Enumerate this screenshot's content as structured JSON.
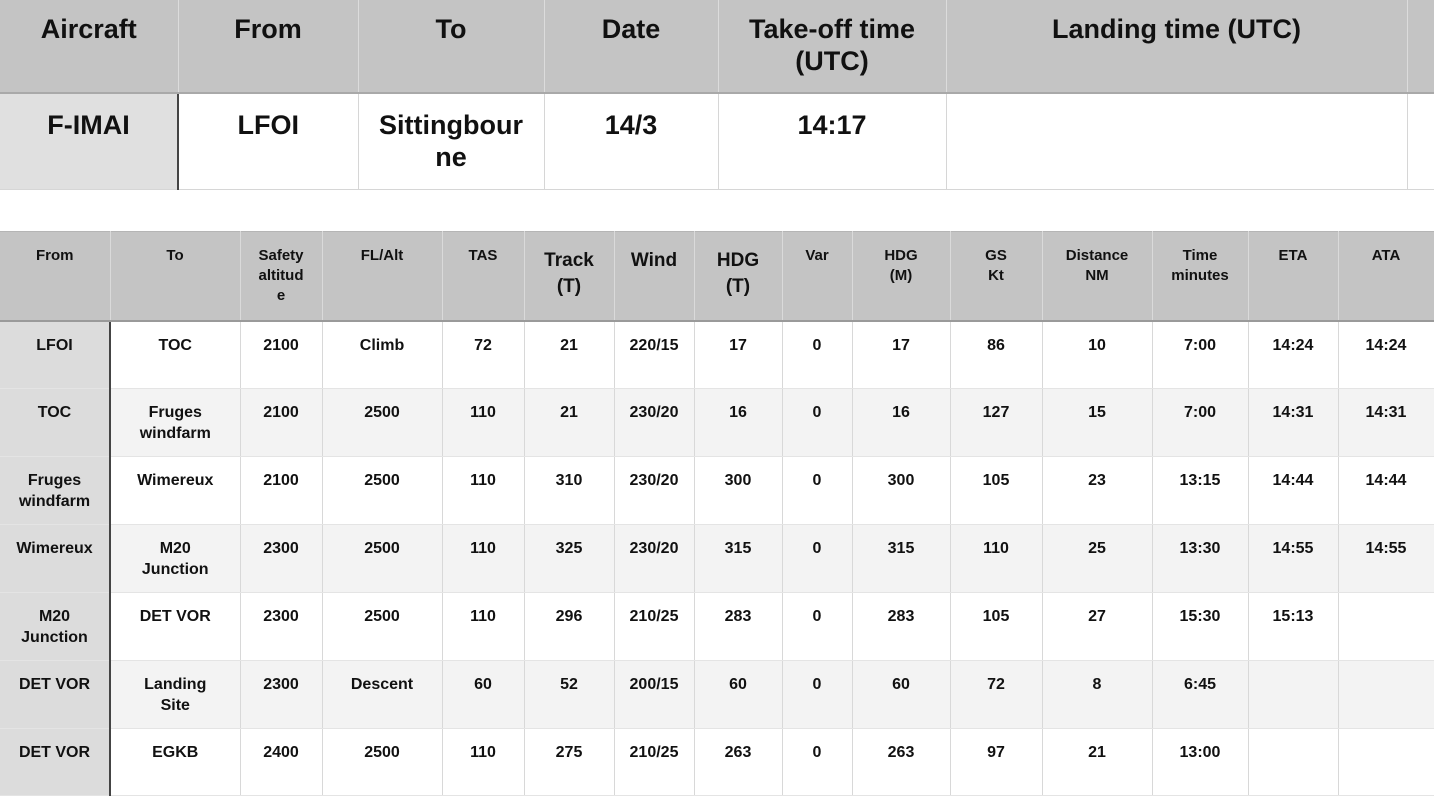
{
  "flight": {
    "headers": {
      "aircraft": "Aircraft",
      "from": "From",
      "to": "To",
      "date": "Date",
      "takeoff_line1": "Take-off time",
      "takeoff_line2": "(UTC)",
      "landing": "Landing time (UTC)"
    },
    "values": {
      "aircraft": "F-IMAI",
      "from": "LFOI",
      "to_line1": "Sittingbour",
      "to_line2": "ne",
      "date": "14/3",
      "takeoff": "14:17",
      "landing": ""
    }
  },
  "route": {
    "headers": [
      "From",
      "To",
      "Safety altitud e",
      "FL/Alt",
      "TAS",
      "Track (T)",
      "Wind",
      "HDG (T)",
      "Var",
      "HDG (M)",
      "GS Kt",
      "Distance NM",
      "Time minutes",
      "ETA",
      "ATA"
    ],
    "header_lines": [
      [
        "From"
      ],
      [
        "To"
      ],
      [
        "Safety",
        "altitud",
        "e"
      ],
      [
        "FL/Alt"
      ],
      [
        "TAS"
      ],
      [
        "Track",
        "(T)"
      ],
      [
        "Wind"
      ],
      [
        "HDG",
        "(T)"
      ],
      [
        "Var"
      ],
      [
        "HDG",
        "(M)"
      ],
      [
        "GS",
        "Kt"
      ],
      [
        "Distance",
        "NM"
      ],
      [
        "Time",
        "minutes"
      ],
      [
        "ETA"
      ],
      [
        "ATA"
      ]
    ],
    "rows": [
      [
        [
          "LFOI"
        ],
        [
          "TOC"
        ],
        [
          "2100"
        ],
        [
          "Climb"
        ],
        [
          "72"
        ],
        [
          "21"
        ],
        [
          "220/15"
        ],
        [
          "17"
        ],
        [
          "0"
        ],
        [
          "17"
        ],
        [
          "86"
        ],
        [
          "10"
        ],
        [
          "7:00"
        ],
        [
          "14:24"
        ],
        [
          "14:24"
        ]
      ],
      [
        [
          "TOC"
        ],
        [
          "Fruges",
          "windfarm"
        ],
        [
          "2100"
        ],
        [
          "2500"
        ],
        [
          "110"
        ],
        [
          "21"
        ],
        [
          "230/20"
        ],
        [
          "16"
        ],
        [
          "0"
        ],
        [
          "16"
        ],
        [
          "127"
        ],
        [
          "15"
        ],
        [
          "7:00"
        ],
        [
          "14:31"
        ],
        [
          "14:31"
        ]
      ],
      [
        [
          "Fruges",
          "windfarm"
        ],
        [
          "Wimereux"
        ],
        [
          "2100"
        ],
        [
          "2500"
        ],
        [
          "110"
        ],
        [
          "310"
        ],
        [
          "230/20"
        ],
        [
          "300"
        ],
        [
          "0"
        ],
        [
          "300"
        ],
        [
          "105"
        ],
        [
          "23"
        ],
        [
          "13:15"
        ],
        [
          "14:44"
        ],
        [
          "14:44"
        ]
      ],
      [
        [
          "Wimereux"
        ],
        [
          "M20",
          "Junction"
        ],
        [
          "2300"
        ],
        [
          "2500"
        ],
        [
          "110"
        ],
        [
          "325"
        ],
        [
          "230/20"
        ],
        [
          "315"
        ],
        [
          "0"
        ],
        [
          "315"
        ],
        [
          "110"
        ],
        [
          "25"
        ],
        [
          "13:30"
        ],
        [
          "14:55"
        ],
        [
          "14:55"
        ]
      ],
      [
        [
          "M20",
          "Junction"
        ],
        [
          "DET VOR"
        ],
        [
          "2300"
        ],
        [
          "2500"
        ],
        [
          "110"
        ],
        [
          "296"
        ],
        [
          "210/25"
        ],
        [
          "283"
        ],
        [
          "0"
        ],
        [
          "283"
        ],
        [
          "105"
        ],
        [
          "27"
        ],
        [
          "15:30"
        ],
        [
          "15:13"
        ],
        [
          ""
        ]
      ],
      [
        [
          "DET VOR"
        ],
        [
          "Landing",
          "Site"
        ],
        [
          "2300"
        ],
        [
          "Descent"
        ],
        [
          "60"
        ],
        [
          "52"
        ],
        [
          "200/15"
        ],
        [
          "60"
        ],
        [
          "0"
        ],
        [
          "60"
        ],
        [
          "72"
        ],
        [
          "8"
        ],
        [
          "6:45"
        ],
        [
          ""
        ],
        [
          ""
        ]
      ],
      [
        [
          "DET VOR"
        ],
        [
          "EGKB"
        ],
        [
          "2400"
        ],
        [
          "2500"
        ],
        [
          "110"
        ],
        [
          "275"
        ],
        [
          "210/25"
        ],
        [
          "263"
        ],
        [
          "0"
        ],
        [
          "263"
        ],
        [
          "97"
        ],
        [
          "21"
        ],
        [
          "13:00"
        ],
        [
          ""
        ],
        [
          ""
        ]
      ]
    ]
  }
}
